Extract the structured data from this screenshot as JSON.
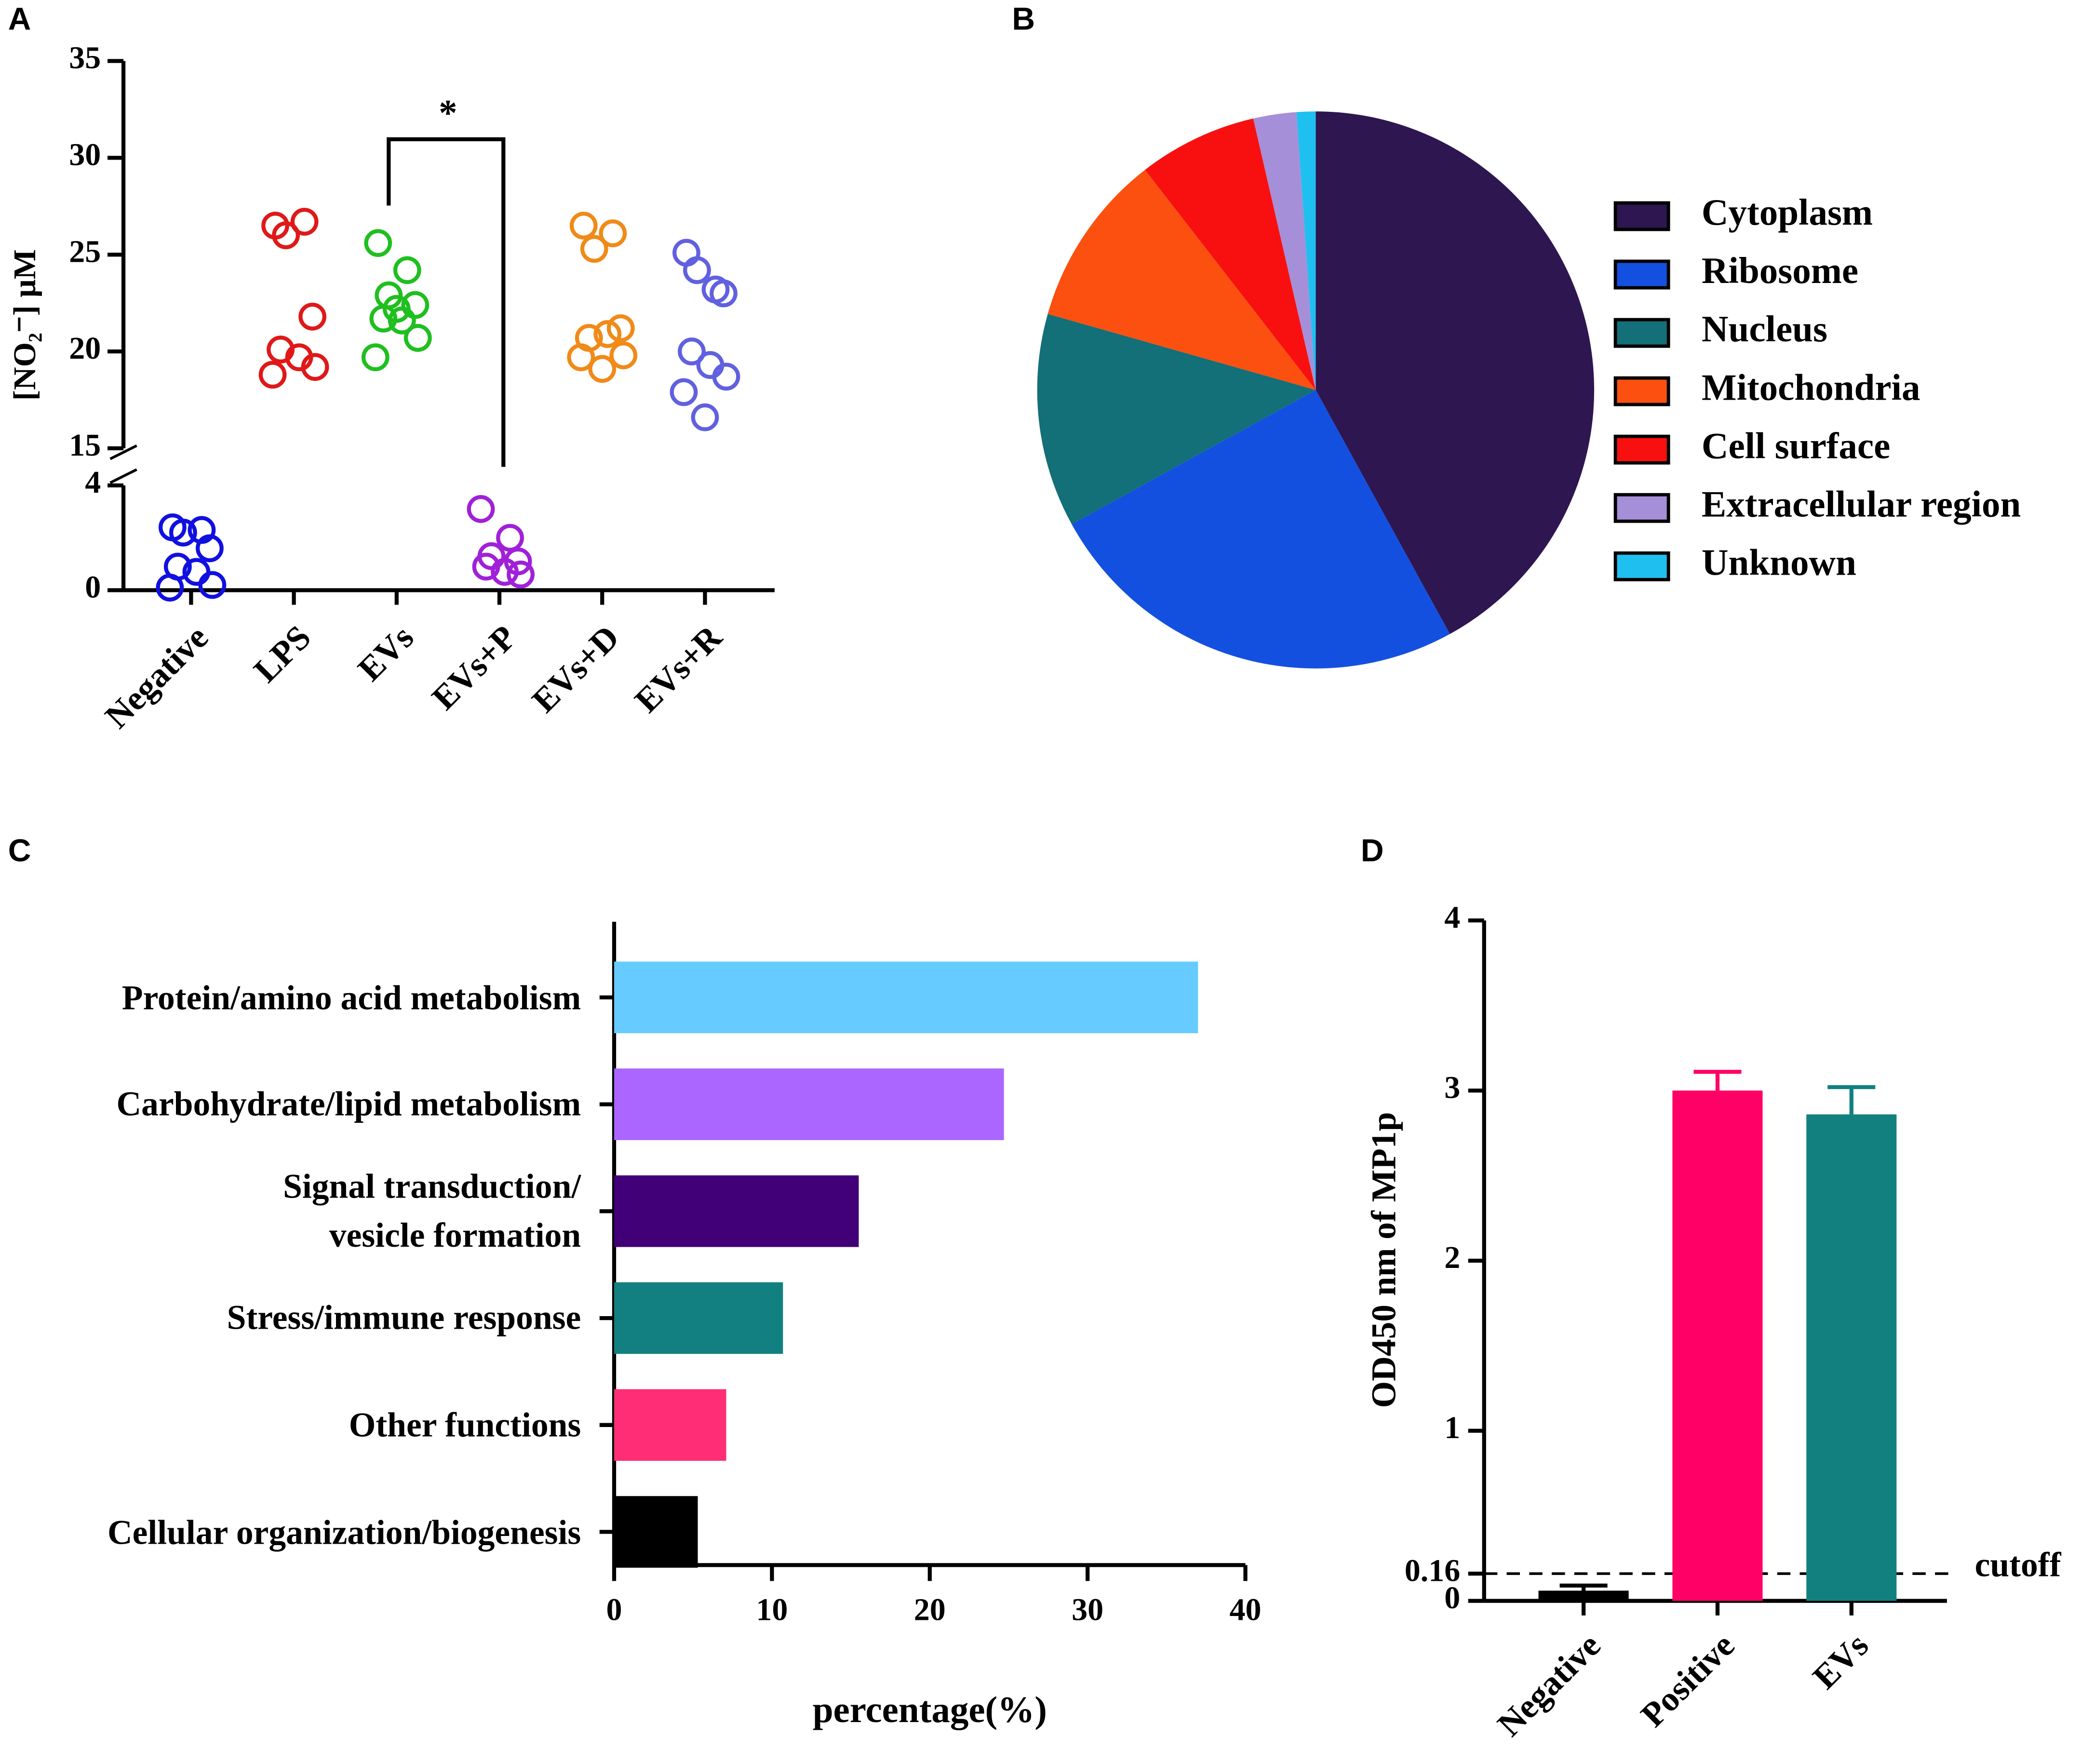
{
  "chart_data": [
    {
      "panel": "A",
      "type": "dotplot",
      "ylabel": "[NO₂⁻] μM",
      "categories": [
        "Negative",
        "LPS",
        "EVs",
        "EVs+P",
        "EVs+D",
        "EVs+R"
      ],
      "colors": [
        "#1010e0",
        "#e01818",
        "#1fbf1f",
        "#a020d8",
        "#f08a18",
        "#6060e0"
      ],
      "values": [
        [
          2.4,
          2.3,
          2.2,
          1.6,
          0.9,
          0.7,
          0.2,
          0.1
        ],
        [
          26.5,
          26.7,
          26.0,
          21.8,
          20.1,
          19.7,
          19.2,
          18.8
        ],
        [
          25.6,
          24.2,
          22.9,
          22.4,
          21.7,
          21.6,
          20.7,
          19.7,
          22.2
        ],
        [
          3.1,
          2.0,
          1.3,
          1.1,
          0.9,
          0.7,
          0.6
        ],
        [
          26.5,
          26.1,
          25.3,
          21.2,
          20.7,
          20.9,
          19.8,
          19.7,
          19.1
        ],
        [
          25.1,
          23.2,
          24.2,
          23.0,
          20.0,
          19.3,
          18.7,
          17.9,
          16.6
        ]
      ],
      "ylim": [
        0,
        35
      ],
      "ybreak": [
        4,
        15
      ],
      "yticks": [
        0,
        4,
        15,
        20,
        25,
        30,
        35
      ],
      "annotation": "*"
    },
    {
      "panel": "B",
      "type": "pie",
      "categories": [
        "Cytoplasm",
        "Ribosome",
        "Nucleus",
        "Mitochondria",
        "Cell surface",
        "Extracellular region",
        "Unknown"
      ],
      "values": [
        42,
        25,
        12.4,
        10.1,
        6.9,
        2.5,
        1.1
      ],
      "colors": [
        "#2e1650",
        "#1450e0",
        "#136f78",
        "#fb5010",
        "#f81010",
        "#a58fd8",
        "#1fc0f0"
      ]
    },
    {
      "panel": "C",
      "type": "hbar",
      "xlabel": "percentage(%)",
      "categories": [
        "Protein/amino acid metabolism",
        "Carbohydrate/lipid metabolism",
        "Signal transduction/\nvesicle formation",
        "Stress/immune response",
        "Other functions",
        "Cellular organization/biogenesis"
      ],
      "values": [
        37.0,
        24.7,
        15.5,
        10.7,
        7.1,
        5.3
      ],
      "colors": [
        "#66ccff",
        "#aa66ff",
        "#420078",
        "#128080",
        "#ff2d75",
        "#000000"
      ],
      "xlim": [
        0,
        40
      ],
      "xticks": [
        0,
        10,
        20,
        30,
        40
      ]
    },
    {
      "panel": "D",
      "type": "bar",
      "ylabel": "OD450 nm of MP1p",
      "categories": [
        "Negative",
        "Positive",
        "EVs"
      ],
      "values": [
        0.06,
        3.0,
        2.86
      ],
      "errors": [
        0.03,
        0.11,
        0.16
      ],
      "colors": [
        "#000000",
        "#ff0066",
        "#138080"
      ],
      "ylim": [
        0,
        4
      ],
      "yticks": [
        0,
        0.16,
        1,
        2,
        3,
        4
      ],
      "reference_line": {
        "value": 0.16,
        "label": "cutoff"
      }
    }
  ]
}
